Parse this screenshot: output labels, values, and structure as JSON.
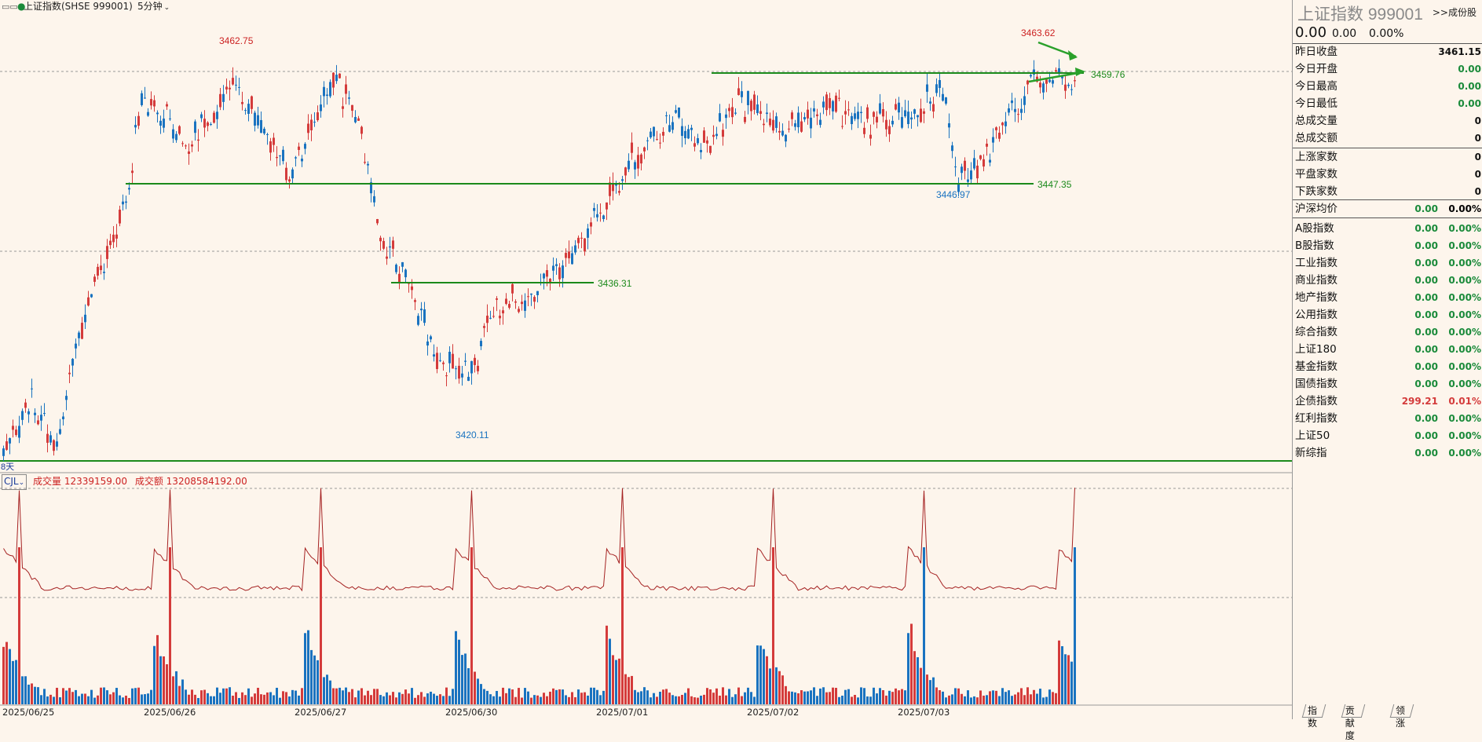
{
  "window": {
    "title": "上证指数(SHSE 999001)",
    "period": "5分钟",
    "grip_icon": "drag-handle-icon"
  },
  "chart_data": {
    "type": "candlestick",
    "symbol": "上证指数",
    "code": "999001",
    "period": "5分钟",
    "price_annotations": [
      {
        "label": "3462.75",
        "value": 3462.75,
        "kind": "high"
      },
      {
        "label": "3463.62",
        "value": 3463.62,
        "kind": "high"
      },
      {
        "label": "3420.11",
        "value": 3420.11,
        "kind": "low"
      },
      {
        "label": "3446.97",
        "value": 3446.97,
        "kind": "low"
      }
    ],
    "support_lines": [
      {
        "label": "3447.35",
        "value": 3447.35
      },
      {
        "label": "3436.31",
        "value": 3436.31
      },
      {
        "label": "3459.76",
        "value": 3459.76
      }
    ],
    "period_marker": "8天",
    "x_ticks": [
      "2025/06/25",
      "2025/06/26",
      "2025/06/27",
      "2025/06/30",
      "2025/07/01",
      "2025/07/02",
      "2025/07/03"
    ],
    "volume_indicator": {
      "name": "CJL",
      "volume_label": "成交量",
      "volume_value": "12339159.00",
      "amount_label": "成交额",
      "amount_value": "13208584192.00"
    },
    "colors": {
      "up": "#d43b3b",
      "down": "#1a73c0",
      "line": "#1b8a1b",
      "amount": "#a52222"
    }
  },
  "sidebar": {
    "name": "上证指数",
    "code": "999001",
    "components_link": ">>成份股",
    "price": "0.00",
    "change": "0.00",
    "change_pct": "0.00%",
    "quote_rows": [
      {
        "label": "昨日收盘",
        "value": "3461.15",
        "color": "#111"
      },
      {
        "label": "今日开盘",
        "value": "0.00",
        "color": "#1a8a3a"
      },
      {
        "label": "今日最高",
        "value": "0.00",
        "color": "#1a8a3a"
      },
      {
        "label": "今日最低",
        "value": "0.00",
        "color": "#1a8a3a"
      },
      {
        "label": "总成交量",
        "value": "0",
        "color": "#111"
      },
      {
        "label": "总成交额",
        "value": "0",
        "color": "#111"
      }
    ],
    "breadth_rows": [
      {
        "label": "上涨家数",
        "value": "0"
      },
      {
        "label": "平盘家数",
        "value": "0"
      },
      {
        "label": "下跌家数",
        "value": "0"
      }
    ],
    "avg_row": {
      "label": "沪深均价",
      "value": "0.00",
      "pct": "0.00%"
    },
    "index_rows": [
      {
        "label": "A股指数",
        "value": "0.00",
        "pct": "0.00%",
        "color": "#1a8a3a"
      },
      {
        "label": "B股指数",
        "value": "0.00",
        "pct": "0.00%",
        "color": "#1a8a3a"
      },
      {
        "label": "工业指数",
        "value": "0.00",
        "pct": "0.00%",
        "color": "#1a8a3a"
      },
      {
        "label": "商业指数",
        "value": "0.00",
        "pct": "0.00%",
        "color": "#1a8a3a"
      },
      {
        "label": "地产指数",
        "value": "0.00",
        "pct": "0.00%",
        "color": "#1a8a3a"
      },
      {
        "label": "公用指数",
        "value": "0.00",
        "pct": "0.00%",
        "color": "#1a8a3a"
      },
      {
        "label": "综合指数",
        "value": "0.00",
        "pct": "0.00%",
        "color": "#1a8a3a"
      },
      {
        "label": "上证180",
        "value": "0.00",
        "pct": "0.00%",
        "color": "#1a8a3a"
      },
      {
        "label": "基金指数",
        "value": "0.00",
        "pct": "0.00%",
        "color": "#1a8a3a"
      },
      {
        "label": "国债指数",
        "value": "0.00",
        "pct": "0.00%",
        "color": "#1a8a3a"
      },
      {
        "label": "企债指数",
        "value": "299.21",
        "pct": "0.01%",
        "color": "#d43b3b"
      },
      {
        "label": "红利指数",
        "value": "0.00",
        "pct": "0.00%",
        "color": "#1a8a3a"
      },
      {
        "label": "上证50",
        "value": "0.00",
        "pct": "0.00%",
        "color": "#1a8a3a"
      },
      {
        "label": "新综指",
        "value": "0.00",
        "pct": "0.00%",
        "color": "#1a8a3a"
      }
    ],
    "tabs": [
      "指数",
      "贡献度",
      "领涨"
    ]
  }
}
